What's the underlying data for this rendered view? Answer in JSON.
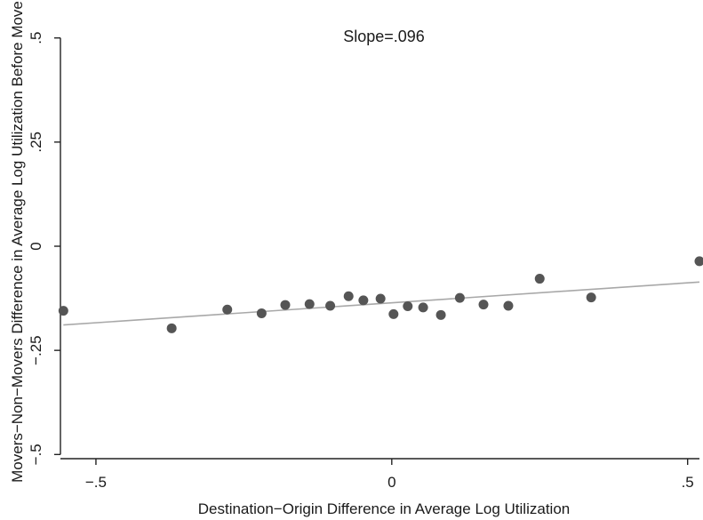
{
  "chart_data": {
    "type": "scatter",
    "title": "",
    "annotation": "Slope=.096",
    "xlabel": "Destination−Origin Difference in Average Log Utilization",
    "ylabel": "Movers−Non−Movers Difference in Average Log Utilization Before Move",
    "xlim": [
      -0.56,
      0.52
    ],
    "ylim": [
      -0.51,
      0.51
    ],
    "x_ticks": [
      {
        "value": -0.5,
        "label": "−.5"
      },
      {
        "value": 0,
        "label": "0"
      },
      {
        "value": 0.5,
        "label": ".5"
      }
    ],
    "y_ticks": [
      {
        "value": -0.5,
        "label": "−.5"
      },
      {
        "value": -0.25,
        "label": "−.25"
      },
      {
        "value": 0,
        "label": "0"
      },
      {
        "value": 0.25,
        "label": ".25"
      },
      {
        "value": 0.5,
        "label": ".5"
      }
    ],
    "grid": false,
    "points": [
      {
        "x": -0.555,
        "y": -0.155
      },
      {
        "x": -0.372,
        "y": -0.197
      },
      {
        "x": -0.278,
        "y": -0.152
      },
      {
        "x": -0.22,
        "y": -0.161
      },
      {
        "x": -0.18,
        "y": -0.141
      },
      {
        "x": -0.139,
        "y": -0.139
      },
      {
        "x": -0.104,
        "y": -0.143
      },
      {
        "x": -0.073,
        "y": -0.12
      },
      {
        "x": -0.048,
        "y": -0.13
      },
      {
        "x": -0.019,
        "y": -0.126
      },
      {
        "x": 0.003,
        "y": -0.163
      },
      {
        "x": 0.027,
        "y": -0.144
      },
      {
        "x": 0.053,
        "y": -0.147
      },
      {
        "x": 0.083,
        "y": -0.165
      },
      {
        "x": 0.115,
        "y": -0.124
      },
      {
        "x": 0.155,
        "y": -0.14
      },
      {
        "x": 0.197,
        "y": -0.143
      },
      {
        "x": 0.25,
        "y": -0.078
      },
      {
        "x": 0.337,
        "y": -0.123
      },
      {
        "x": 0.52,
        "y": -0.036
      }
    ],
    "fit_line": {
      "slope": 0.096,
      "x": [
        -0.555,
        0.52
      ],
      "y": [
        -0.189,
        -0.086
      ]
    },
    "colors": {
      "points": "#555555",
      "fit_line": "#a8a8a8",
      "axes": "#222222"
    }
  }
}
